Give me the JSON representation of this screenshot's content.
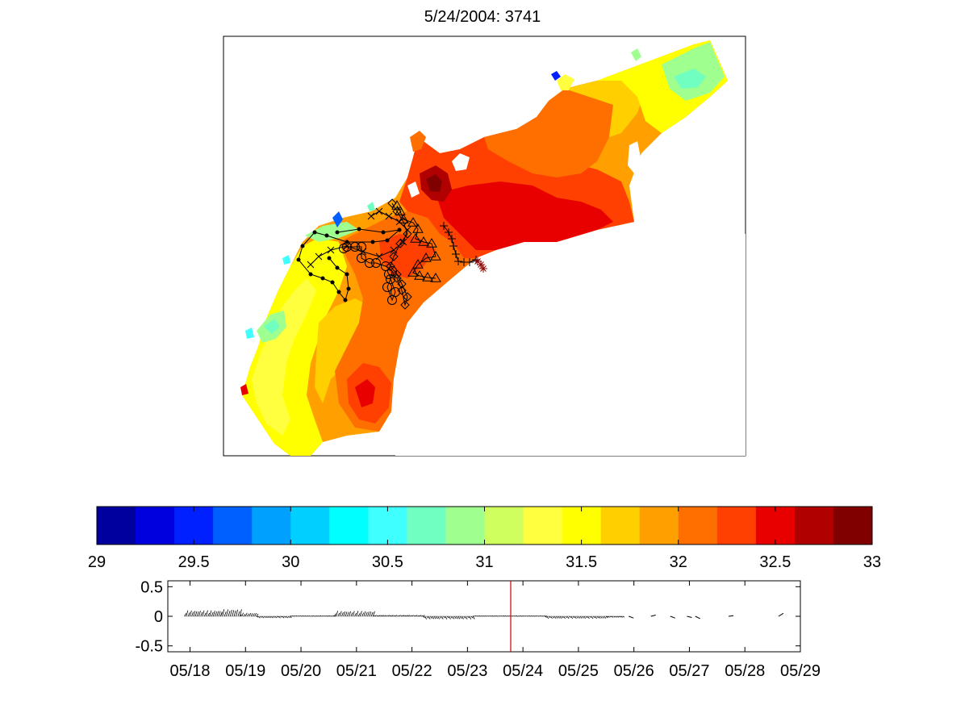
{
  "figure": {
    "title": "5/24/2004: 3741"
  },
  "chart_data": [
    {
      "type": "heatmap",
      "name": "salinity-map",
      "title": "5/24/2004: 3741",
      "colorbar": {
        "ticks": [
          "29",
          "29.5",
          "30",
          "30.5",
          "31",
          "31.5",
          "32",
          "32.5",
          "33"
        ],
        "range": [
          29,
          33
        ],
        "levels": 20,
        "colors": [
          "#00009f",
          "#0000df",
          "#0020ff",
          "#0060ff",
          "#00a0ff",
          "#00cfff",
          "#00ffff",
          "#40ffff",
          "#70ffc0",
          "#9fff8f",
          "#cfff5f",
          "#ffff40",
          "#ffff00",
          "#ffcf00",
          "#ff9f00",
          "#ff6f00",
          "#ff4000",
          "#e80000",
          "#b00000",
          "#800000"
        ]
      },
      "markers": {
        "dot_track": "dot-line",
        "x_track": "x",
        "circle_track": "circle",
        "diamond_track": "diamond",
        "triangle_track": "triangle",
        "plus_track": "plus",
        "star_track": "star"
      }
    },
    {
      "type": "line",
      "name": "stick-timeseries",
      "x_ticks": [
        "05/18",
        "05/19",
        "05/20",
        "05/21",
        "05/22",
        "05/23",
        "05/24",
        "05/25",
        "05/26",
        "05/27",
        "05/28",
        "05/29"
      ],
      "y_ticks": [
        "0.5",
        "0",
        "-0.5"
      ],
      "ylim": [
        -0.6,
        0.6
      ],
      "xlim_days": [
        17.6,
        29.0
      ],
      "current_time_day": 23.78,
      "current_time_color": "#cc0000",
      "series": [
        {
          "segments": [
            {
              "t0": 17.9,
              "t1": 18.55,
              "amp": 0.1
            },
            {
              "t0": 18.55,
              "t1": 18.9,
              "amp": 0.12
            },
            {
              "t0": 18.9,
              "t1": 19.2,
              "amp": 0.06
            },
            {
              "t0": 19.2,
              "t1": 19.8,
              "amp": -0.03
            },
            {
              "t0": 19.8,
              "t1": 20.6,
              "amp": 0.01
            },
            {
              "t0": 20.6,
              "t1": 21.3,
              "amp": 0.09
            },
            {
              "t0": 21.3,
              "t1": 22.2,
              "amp": 0.02
            },
            {
              "t0": 22.2,
              "t1": 23.1,
              "amp": -0.05
            },
            {
              "t0": 23.1,
              "t1": 24.4,
              "amp": 0.01
            },
            {
              "t0": 24.4,
              "t1": 25.5,
              "amp": -0.04
            },
            {
              "t0": 25.5,
              "t1": 25.8,
              "amp": -0.02
            }
          ],
          "sparse": [
            {
              "t": 25.95,
              "amp": -0.03
            },
            {
              "t": 26.35,
              "amp": 0.02
            },
            {
              "t": 26.7,
              "amp": -0.03
            },
            {
              "t": 27.0,
              "amp": -0.02
            },
            {
              "t": 27.15,
              "amp": -0.04
            },
            {
              "t": 27.75,
              "amp": 0.01
            },
            {
              "t": 28.65,
              "amp": 0.05
            }
          ]
        }
      ]
    }
  ]
}
